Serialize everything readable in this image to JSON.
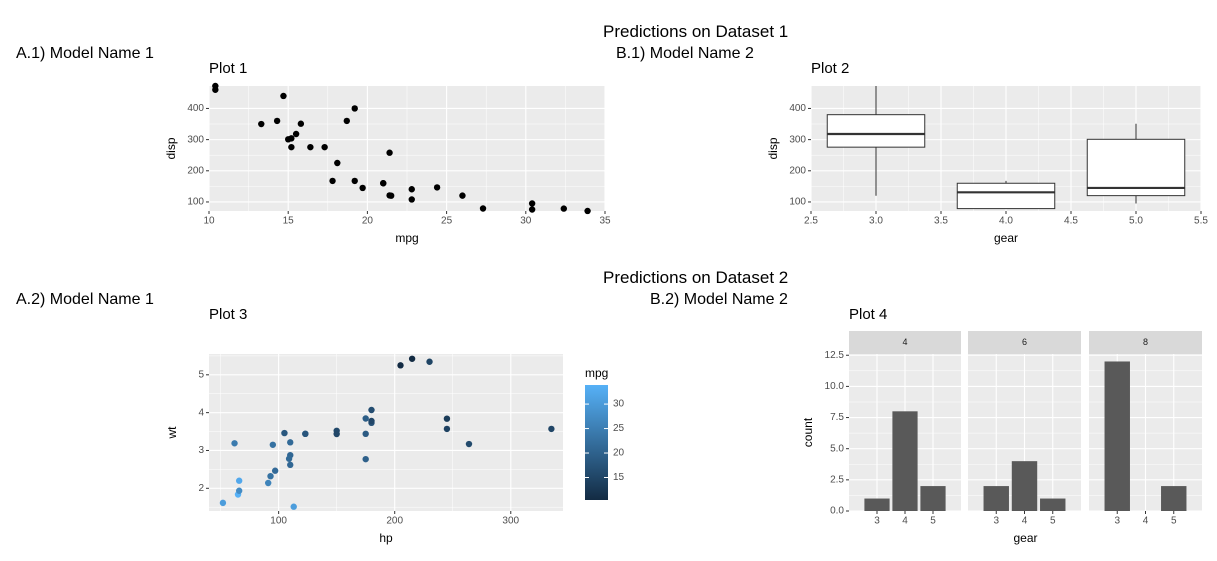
{
  "headers": {
    "dataset1": "Predictions on Dataset 1",
    "dataset2": "Predictions on Dataset 2",
    "a1": "A.1) Model Name 1",
    "b1": "B.1) Model Name 2",
    "a2": "A.2) Model Name 1",
    "b2": "B.2) Model Name 2"
  },
  "chart_data": [
    {
      "id": "plot1",
      "type": "scatter",
      "title": "Plot 1",
      "xlabel": "mpg",
      "ylabel": "disp",
      "xlim": [
        10,
        35
      ],
      "ylim": [
        71,
        472
      ],
      "xticks": [
        10,
        15,
        20,
        25,
        30,
        35
      ],
      "yticks": [
        100,
        200,
        300,
        400
      ],
      "points": [
        [
          21.0,
          160
        ],
        [
          21.0,
          160
        ],
        [
          22.8,
          108
        ],
        [
          21.4,
          258
        ],
        [
          18.7,
          360
        ],
        [
          18.1,
          225
        ],
        [
          14.3,
          360
        ],
        [
          24.4,
          146.7
        ],
        [
          22.8,
          140.8
        ],
        [
          19.2,
          167.6
        ],
        [
          17.8,
          167.6
        ],
        [
          16.4,
          275.8
        ],
        [
          17.3,
          275.8
        ],
        [
          15.2,
          275.8
        ],
        [
          10.4,
          472
        ],
        [
          10.4,
          460
        ],
        [
          14.7,
          440
        ],
        [
          32.4,
          78.7
        ],
        [
          30.4,
          75.7
        ],
        [
          33.9,
          71.1
        ],
        [
          21.5,
          120.1
        ],
        [
          15.5,
          318
        ],
        [
          15.2,
          304
        ],
        [
          13.3,
          350
        ],
        [
          19.2,
          400
        ],
        [
          27.3,
          79
        ],
        [
          26.0,
          120.3
        ],
        [
          30.4,
          95.1
        ],
        [
          15.8,
          351
        ],
        [
          19.7,
          145
        ],
        [
          15.0,
          301
        ],
        [
          21.4,
          121
        ]
      ]
    },
    {
      "id": "plot2",
      "type": "boxplot",
      "title": "Plot 2",
      "xlabel": "gear",
      "ylabel": "disp",
      "xlim": [
        2.5,
        5.5
      ],
      "ylim": [
        71,
        472
      ],
      "xticks": [
        2.5,
        3.0,
        3.5,
        4.0,
        4.5,
        5.0,
        5.5
      ],
      "yticks": [
        100,
        200,
        300,
        400
      ],
      "boxes": [
        {
          "x": 3,
          "min": 120.1,
          "q1": 275.8,
          "median": 318,
          "q3": 380,
          "max": 472
        },
        {
          "x": 4,
          "min": 78.7,
          "q1": 78.7,
          "median": 130.9,
          "q3": 160,
          "max": 167.6
        },
        {
          "x": 5,
          "min": 95.1,
          "q1": 120.3,
          "median": 145,
          "q3": 301,
          "max": 351
        }
      ]
    },
    {
      "id": "plot3",
      "type": "scatter",
      "title": "Plot 3",
      "xlabel": "hp",
      "ylabel": "wt",
      "xlim": [
        40,
        345
      ],
      "ylim": [
        1.4,
        5.55
      ],
      "xticks": [
        100,
        200,
        300
      ],
      "yticks": [
        2,
        3,
        4,
        5
      ],
      "legend": {
        "title": "mpg",
        "min": 10.4,
        "max": 33.9,
        "ticks": [
          15,
          20,
          25,
          30
        ],
        "low_color": "#132B43",
        "high_color": "#56B1F7"
      },
      "points": [
        {
          "x": 110,
          "y": 2.62,
          "c": 21.0
        },
        {
          "x": 110,
          "y": 2.875,
          "c": 21.0
        },
        {
          "x": 93,
          "y": 2.32,
          "c": 22.8
        },
        {
          "x": 110,
          "y": 3.215,
          "c": 21.4
        },
        {
          "x": 175,
          "y": 3.44,
          "c": 18.7
        },
        {
          "x": 105,
          "y": 3.46,
          "c": 18.1
        },
        {
          "x": 245,
          "y": 3.57,
          "c": 14.3
        },
        {
          "x": 62,
          "y": 3.19,
          "c": 24.4
        },
        {
          "x": 95,
          "y": 3.15,
          "c": 22.8
        },
        {
          "x": 123,
          "y": 3.44,
          "c": 19.2
        },
        {
          "x": 123,
          "y": 3.44,
          "c": 17.8
        },
        {
          "x": 180,
          "y": 4.07,
          "c": 16.4
        },
        {
          "x": 180,
          "y": 3.73,
          "c": 17.3
        },
        {
          "x": 180,
          "y": 3.78,
          "c": 15.2
        },
        {
          "x": 205,
          "y": 5.25,
          "c": 10.4
        },
        {
          "x": 215,
          "y": 5.424,
          "c": 10.4
        },
        {
          "x": 230,
          "y": 5.345,
          "c": 14.7
        },
        {
          "x": 66,
          "y": 2.2,
          "c": 32.4
        },
        {
          "x": 52,
          "y": 1.615,
          "c": 30.4
        },
        {
          "x": 65,
          "y": 1.835,
          "c": 33.9
        },
        {
          "x": 97,
          "y": 2.465,
          "c": 21.5
        },
        {
          "x": 150,
          "y": 3.52,
          "c": 15.5
        },
        {
          "x": 150,
          "y": 3.435,
          "c": 15.2
        },
        {
          "x": 245,
          "y": 3.84,
          "c": 13.3
        },
        {
          "x": 175,
          "y": 3.845,
          "c": 19.2
        },
        {
          "x": 66,
          "y": 1.935,
          "c": 27.3
        },
        {
          "x": 91,
          "y": 2.14,
          "c": 26.0
        },
        {
          "x": 113,
          "y": 1.513,
          "c": 30.4
        },
        {
          "x": 264,
          "y": 3.17,
          "c": 15.8
        },
        {
          "x": 175,
          "y": 2.77,
          "c": 19.7
        },
        {
          "x": 335,
          "y": 3.57,
          "c": 15.0
        },
        {
          "x": 109,
          "y": 2.78,
          "c": 21.4
        }
      ]
    },
    {
      "id": "plot4",
      "type": "bar",
      "title": "Plot 4",
      "xlabel": "gear",
      "ylabel": "count",
      "ylim": [
        0,
        12.6
      ],
      "yticks": [
        0.0,
        2.5,
        5.0,
        7.5,
        10.0,
        12.5
      ],
      "ytick_labels": [
        "0.0",
        "2.5",
        "5.0",
        "7.5",
        "10.0",
        "12.5"
      ],
      "categories": [
        "3",
        "4",
        "5"
      ],
      "facets": [
        {
          "label": "4",
          "values": [
            1,
            8,
            2
          ]
        },
        {
          "label": "6",
          "values": [
            2,
            4,
            1
          ]
        },
        {
          "label": "8",
          "values": [
            12,
            0,
            2
          ]
        }
      ]
    }
  ]
}
